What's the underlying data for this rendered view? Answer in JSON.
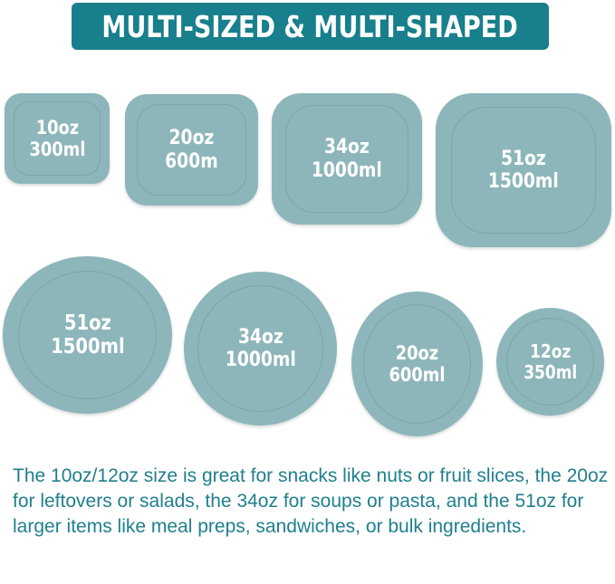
{
  "banner": {
    "title": "MULTI-SIZED & MULTI-SHAPED",
    "color": "#187f8c"
  },
  "lid_color": "#8db6bb",
  "square_lids": [
    {
      "oz": "10oz",
      "ml": "300ml"
    },
    {
      "oz": "20oz",
      "ml": "600m"
    },
    {
      "oz": "34oz",
      "ml": "1000ml"
    },
    {
      "oz": "51oz",
      "ml": "1500ml"
    }
  ],
  "round_lids": [
    {
      "oz": "51oz",
      "ml": "1500ml"
    },
    {
      "oz": "34oz",
      "ml": "1000ml"
    },
    {
      "oz": "20oz",
      "ml": "600ml"
    },
    {
      "oz": "12oz",
      "ml": "350ml"
    }
  ],
  "description": "The 10oz/12oz size is great for snacks like nuts or fruit slices, the 20oz for leftovers or salads, the 34oz for soups or pasta, and the 51oz for larger items like meal preps, sandwiches, or bulk ingredients."
}
